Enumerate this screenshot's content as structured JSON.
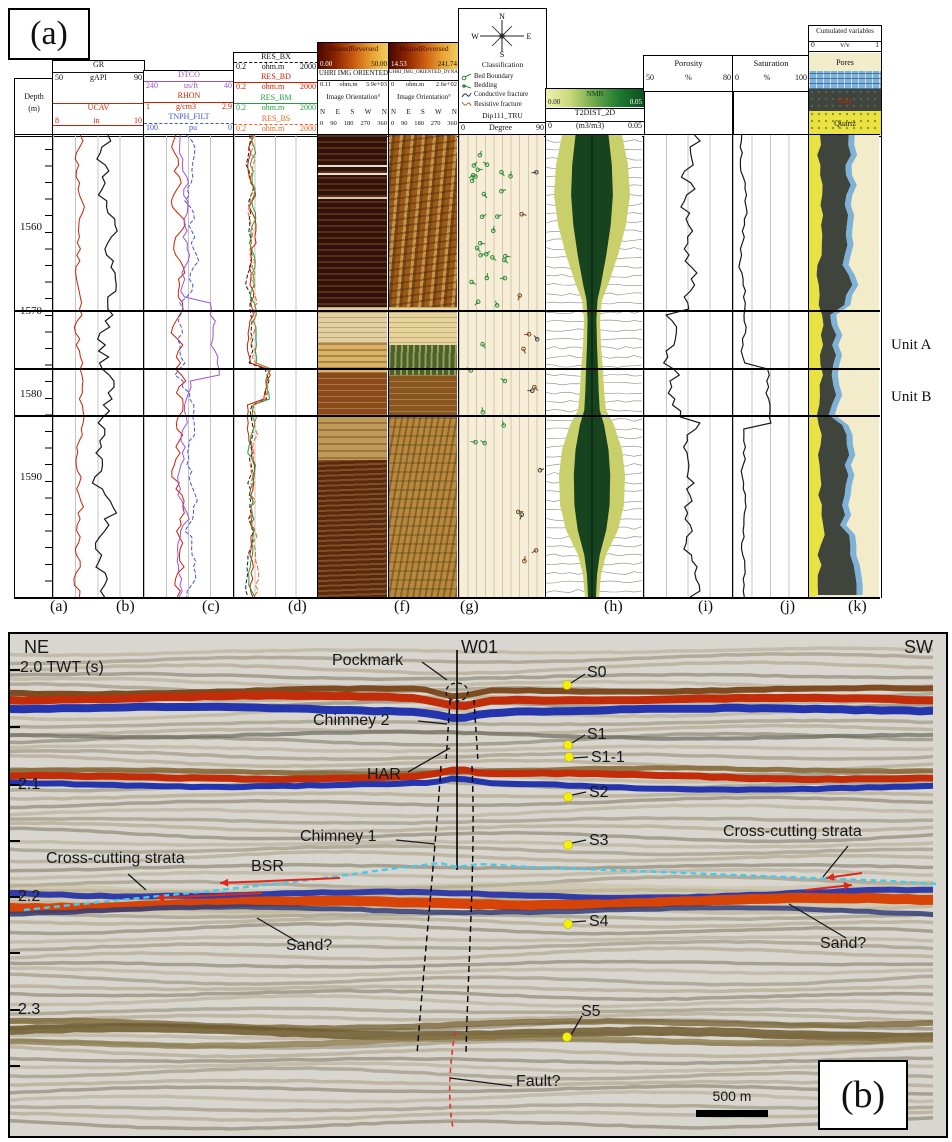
{
  "colors": {
    "gr_curve": "#1a1a1a",
    "ucav_curve": "#cc2200",
    "dtco_curve": "#a050d8",
    "rhon_curve": "#cc2200",
    "tnph_curve": "#4455dd",
    "res_bx": "#1a1a1a",
    "res_bd": "#cc2200",
    "res_bm": "#22a040",
    "res_bs": "#ee6622",
    "marker_dot": "#f2f00c",
    "bsr_line": "#49c8ea",
    "fault_line": "#e03030",
    "pores_fill": "#f2ecca",
    "water_fill": "#7fb2d8",
    "clay_fill": "#3f443c",
    "quartz_fill": "#e8e243"
  },
  "panel_a": {
    "corner_label": "(a)",
    "depth_track": {
      "title": "Depth",
      "units": "(m)",
      "values": [
        "1560",
        "1570",
        "1580",
        "1590"
      ]
    },
    "gr_track": {
      "gr": {
        "name": "GR",
        "min": "50",
        "unit": "gAPI",
        "max": "90"
      },
      "ucav": {
        "name": "UCAV",
        "min": "8",
        "unit": "in",
        "max": "10"
      }
    },
    "sonic_track": {
      "dtco": {
        "name": "DTCO",
        "min": "240",
        "unit": "us/ft",
        "max": "40"
      },
      "rhon": {
        "name": "RHON",
        "min": "1",
        "unit": "g/cm3",
        "max": "2.9"
      },
      "tnph": {
        "name": "TNPH_FILT",
        "min": "100",
        "unit": "pu",
        "max": "0"
      }
    },
    "res_track": {
      "bx": {
        "name": "RES_BX",
        "min": "0.2",
        "unit": "ohm.m",
        "max": "2000"
      },
      "bd": {
        "name": "RES_BD",
        "min": "0.2",
        "unit": "ohm.m",
        "max": "2000"
      },
      "bm": {
        "name": "RES_BM",
        "min": "0.2",
        "unit": "ohm.m",
        "max": "2000"
      },
      "bs": {
        "name": "RES_BS",
        "min": "0.2",
        "unit": "ohm.m",
        "max": "2000"
      }
    },
    "image_track_static": {
      "colorbar": "HeatedReversed",
      "cb_min": "0.00",
      "cb_max": "50.00",
      "name": "UHRI IMG ORIENTED",
      "min": "0.11",
      "unit": "ohm.m",
      "max": "3.9e+03",
      "orientation": "Image Orientation°",
      "compass": [
        "N",
        "E",
        "S",
        "W",
        "N"
      ],
      "degrees": [
        "0",
        "90",
        "180",
        "270",
        "360"
      ]
    },
    "image_track_dynamic": {
      "colorbar": "HeatedReversed",
      "cb_min": "14.53",
      "cb_max": "241.74",
      "name": "UHRI_IMG_ORIENTED_DYNAMIC",
      "min": "0",
      "unit": "ohm.m",
      "max": "2.6e+02",
      "orientation": "Image Orientation°",
      "compass": [
        "N",
        "E",
        "S",
        "W",
        "N"
      ],
      "degrees": [
        "0",
        "90",
        "180",
        "270",
        "360"
      ]
    },
    "classification_track": {
      "compass": {
        "n": "N",
        "w": "W",
        "e": "E",
        "s": "S"
      },
      "title": "Classification",
      "items": [
        "Bed Boundary",
        "Bedding",
        "Conductive fracture",
        "Resistive fracture"
      ],
      "curve": "Dip111_TRU",
      "min": "0",
      "unit": "Degree",
      "max": "90"
    },
    "nmr_track": {
      "colorbar": "NMR",
      "cb_min": "0.00",
      "cb_max": "0.05",
      "name": "T2DIST_2D",
      "min": "0",
      "unit": "(m3/m3)",
      "max": "0.05"
    },
    "porosity_track": {
      "name": "Porosity",
      "min": "50",
      "unit": "%",
      "max": "80"
    },
    "saturation_track": {
      "name": "Saturation",
      "min": "0",
      "unit": "%",
      "max": "100"
    },
    "cumulated_track": {
      "title": "Cumulated variables",
      "min": "0",
      "unit": "v/v",
      "max": "1",
      "legend": [
        "Pores",
        "Clay",
        "Quartz"
      ]
    },
    "unit_labels": [
      "Unit A",
      "Unit B"
    ],
    "bottom_labels": [
      "(a)",
      "(b)",
      "(c)",
      "(d)",
      "(e)",
      "(f)",
      "(g)",
      "(h)",
      "(i)",
      "(j)",
      "(k)"
    ]
  },
  "panel_b": {
    "corner_label": "(b)",
    "direction_left": "NE",
    "direction_right": "SW",
    "well_label": "W01",
    "twt_axis": {
      "top_label": "2.0 TWT (s)",
      "ticks": [
        "2.1",
        "2.2",
        "2.3"
      ]
    },
    "annotations": {
      "pockmark": "Pockmark",
      "chimney2": "Chimney 2",
      "har": "HAR",
      "chimney1": "Chimney 1",
      "bsr": "BSR",
      "cross_cutting_left": "Cross-cutting strata",
      "cross_cutting_right": "Cross-cutting strata",
      "sand_left": "Sand?",
      "sand_right": "Sand?",
      "fault": "Fault?"
    },
    "sample_markers": [
      "S0",
      "S1",
      "S1-1",
      "S2",
      "S3",
      "S4",
      "S5"
    ],
    "scale_bar": "500 m"
  }
}
